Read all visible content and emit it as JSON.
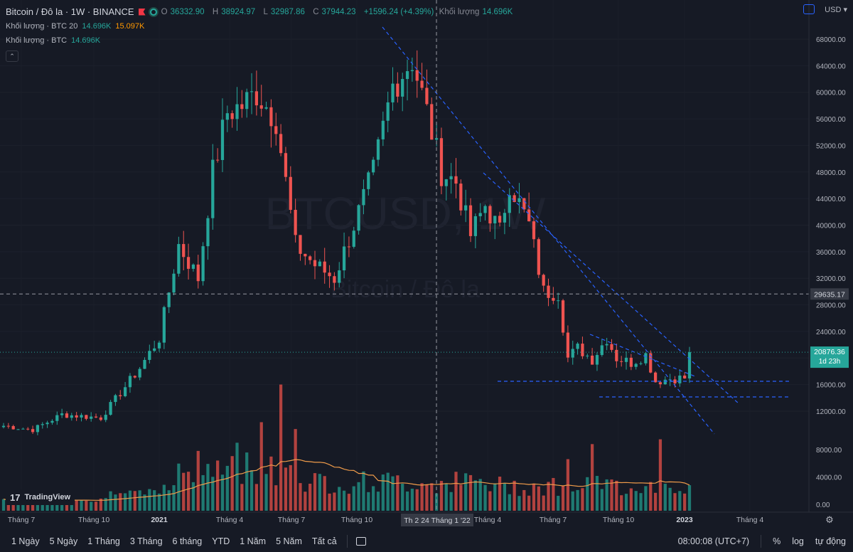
{
  "header": {
    "symbol_title": "Bitcoin / Đô la · 1W · BINANCE",
    "ohlc": {
      "o_label": "O",
      "o": "36332.90",
      "h_label": "H",
      "h": "38924.97",
      "l_label": "L",
      "l": "32987.86",
      "c_label": "C",
      "c": "37944.23",
      "change": "+1596.24 (+4.39%)"
    },
    "vol_label": "Khối lượng",
    "vol_value": "14.696K",
    "currency": "USD",
    "currency_arrow": "▾"
  },
  "indicators": [
    {
      "name": "Khối lượng · BTC 20",
      "v1": "14.696K",
      "v2": "15.097K"
    },
    {
      "name": "Khối lượng · BTC",
      "v1": "14.696K"
    }
  ],
  "watermark": {
    "symbol": "BTCUSD, 1W",
    "name": "Bitcoin / Đô la"
  },
  "bottom": {
    "ranges": [
      "1 Ngày",
      "5 Ngày",
      "1 Tháng",
      "3 Tháng",
      "6 tháng",
      "YTD",
      "1 Năm",
      "5 Năm",
      "Tất cả"
    ],
    "time": "08:00:08 (UTC+7)",
    "percent": "%",
    "log": "log",
    "auto": "tự động"
  },
  "brand": "TradingView",
  "chart_data": {
    "type": "candlestick",
    "y_ticks": [
      "68000.00",
      "64000.00",
      "60000.00",
      "56000.00",
      "52000.00",
      "48000.00",
      "44000.00",
      "40000.00",
      "36000.00",
      "32000.00",
      "28000.00",
      "24000.00",
      "20000.00",
      "16000.00",
      "12000.00"
    ],
    "y_range": [
      9000,
      71000
    ],
    "volume_ticks": [
      "8000.00",
      "4000.00",
      "0.00"
    ],
    "x_ticks": [
      "Tháng 7",
      "Tháng 10",
      "2021",
      "Tháng 4",
      "Tháng 7",
      "Tháng 10",
      "Tháng 1 '22",
      "Tháng 4",
      "Tháng 7",
      "Tháng 10",
      "2023",
      "Tháng 4"
    ],
    "crosshair": {
      "price_label": "29635.17",
      "price": 29635.17,
      "time_label": "Th 2 24 Tháng 1 '22"
    },
    "last_price": {
      "label": "20876.36",
      "countdown": "1d 23h",
      "price": 20876.36
    },
    "colors": {
      "up": "#26a69a",
      "down": "#ef5350",
      "vol_up": "#1f7a72",
      "vol_down": "#b2423f",
      "ma": "#ef9b4a",
      "trend": "#2962ff"
    },
    "key_points": [
      {
        "date": "2020-06",
        "close": 9200
      },
      {
        "date": "2020-12",
        "close": 19000
      },
      {
        "date": "2021-01",
        "close": 33000
      },
      {
        "date": "2021-04",
        "close": 60000
      },
      {
        "date": "2021-07",
        "close": 32000
      },
      {
        "date": "2021-11",
        "close": 65000
      },
      {
        "date": "2022-01",
        "close": 36000
      },
      {
        "date": "2022-03",
        "close": 47000
      },
      {
        "date": "2022-06",
        "close": 19000
      },
      {
        "date": "2022-11",
        "close": 16500
      },
      {
        "date": "2023-01",
        "close": 20876
      }
    ]
  }
}
